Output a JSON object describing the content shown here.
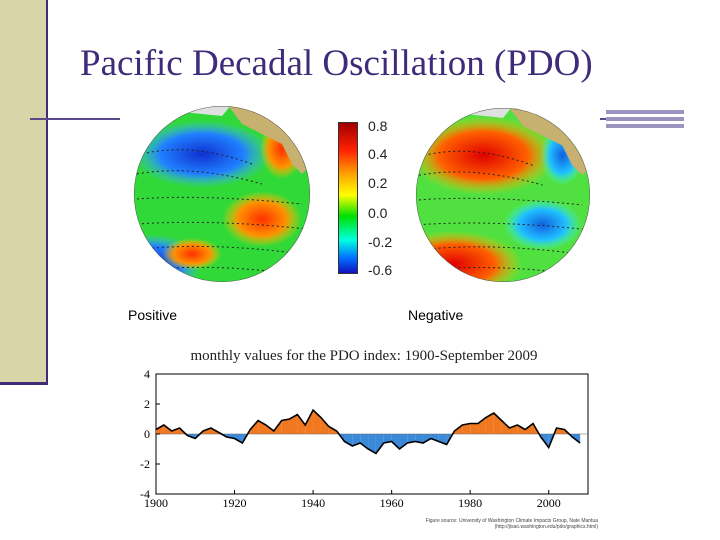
{
  "slide": {
    "title": "Pacific Decadal Oscillation (PDO)"
  },
  "maps": {
    "colorbar_labels": [
      "0.8",
      "0.4",
      "0.2",
      "0.0",
      "-0.2",
      "-0.6"
    ],
    "positive_caption": "Positive",
    "negative_caption": "Negative"
  },
  "chart_data": {
    "type": "area",
    "title": "monthly values for the PDO index: 1900-September 2009",
    "xlim": [
      1900,
      2010
    ],
    "ylim": [
      -4,
      4
    ],
    "xticks": [
      "1900",
      "1920",
      "1940",
      "1960",
      "1980",
      "2000"
    ],
    "yticks": [
      "4",
      "2",
      "0",
      "-2",
      "-4"
    ],
    "colors": {
      "positive": "#f07820",
      "negative": "#3a8ad8",
      "line": "#000000"
    },
    "x": [
      1900,
      1902,
      1904,
      1906,
      1908,
      1910,
      1912,
      1914,
      1916,
      1918,
      1920,
      1922,
      1924,
      1926,
      1928,
      1930,
      1932,
      1934,
      1936,
      1938,
      1940,
      1942,
      1944,
      1946,
      1948,
      1950,
      1952,
      1954,
      1956,
      1958,
      1960,
      1962,
      1964,
      1966,
      1968,
      1970,
      1972,
      1974,
      1976,
      1978,
      1980,
      1982,
      1984,
      1986,
      1988,
      1990,
      1992,
      1994,
      1996,
      1998,
      2000,
      2002,
      2004,
      2006,
      2008
    ],
    "y": [
      0.3,
      0.6,
      0.2,
      0.4,
      -0.1,
      -0.3,
      0.2,
      0.4,
      0.1,
      -0.2,
      -0.3,
      -0.6,
      0.3,
      0.9,
      0.6,
      0.2,
      0.9,
      1.0,
      1.3,
      0.6,
      1.6,
      1.1,
      0.5,
      0.2,
      -0.5,
      -0.8,
      -0.6,
      -1.0,
      -1.3,
      -0.6,
      -0.5,
      -1.0,
      -0.6,
      -0.5,
      -0.6,
      -0.3,
      -0.5,
      -0.7,
      0.2,
      0.6,
      0.7,
      0.7,
      1.1,
      1.4,
      0.9,
      0.4,
      0.6,
      0.3,
      0.7,
      -0.2,
      -0.9,
      0.4,
      0.3,
      -0.2,
      -0.6
    ],
    "source_text": "Figure source: University of Washington Climate Impacts Group, Nate Mantua (http://jisao.washington.edu/pdo/graphics.html)"
  }
}
